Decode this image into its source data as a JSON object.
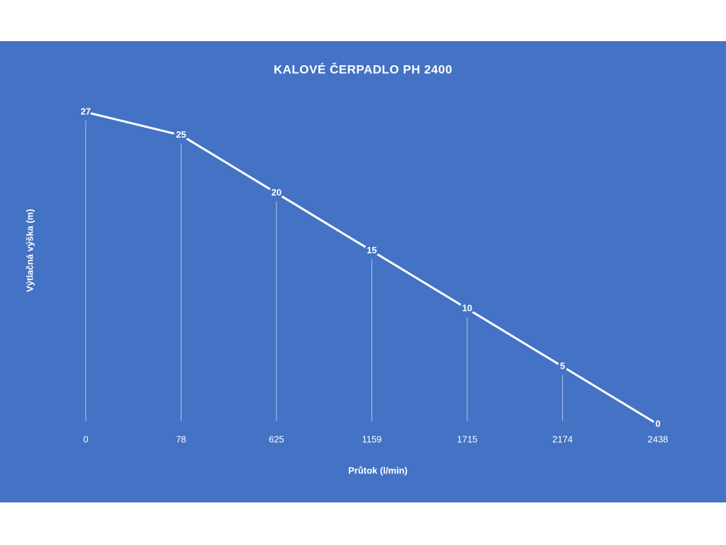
{
  "chart_data": {
    "type": "line",
    "title": "KALOVÉ ČERPADLO PH 2400",
    "x_label": "Průtok (l/min)",
    "y_label": "Výtlačná výška (m)",
    "categories": [
      "0",
      "78",
      "625",
      "1159",
      "1715",
      "2174",
      "2438"
    ],
    "values": [
      27,
      25,
      20,
      15,
      10,
      5,
      0
    ],
    "color": "#ffffff",
    "background": "#4472c4",
    "ylim": [
      0,
      27
    ],
    "drop_lines": true,
    "data_labels": true
  }
}
